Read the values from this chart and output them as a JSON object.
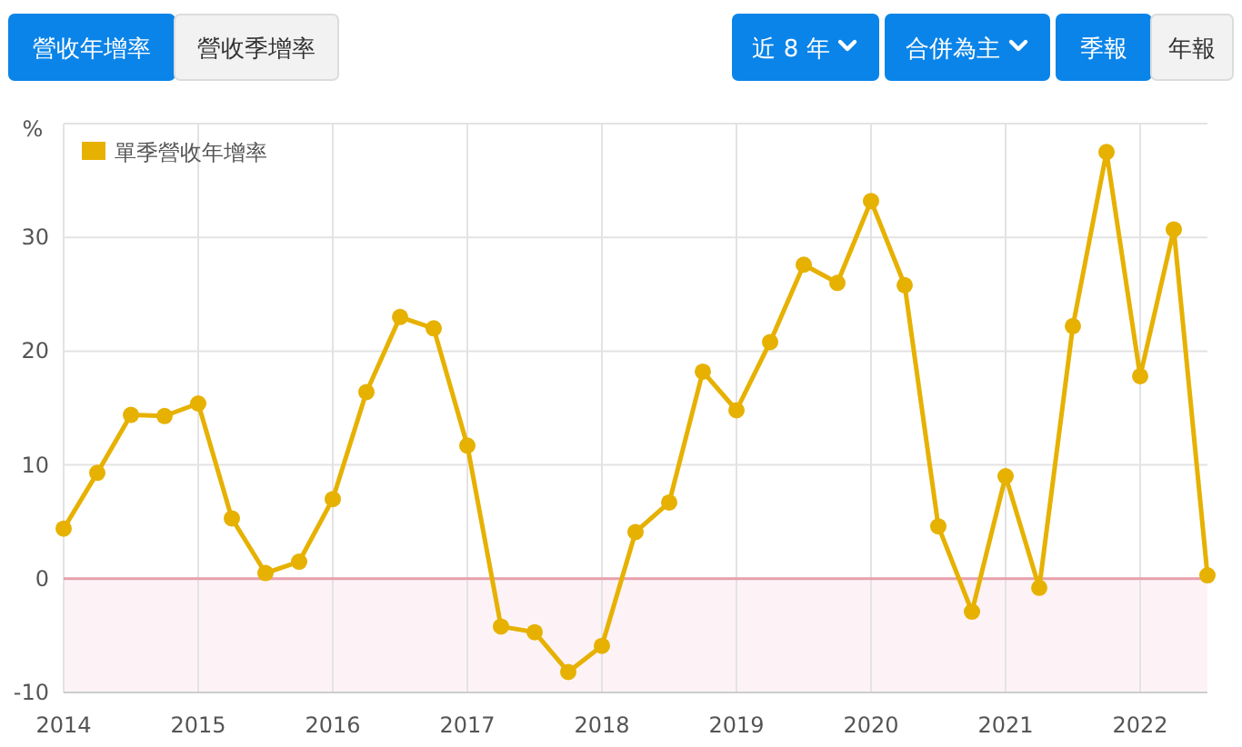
{
  "chart_data": {
    "type": "line",
    "ylabel": "%",
    "annotations": [
      "營收年增率",
      "營收季增率",
      "近 8 年",
      "合併為主",
      "季報",
      "年報"
    ],
    "x": [
      2014,
      2014.25,
      2014.5,
      2014.75,
      2015,
      2015.25,
      2015.5,
      2015.75,
      2016,
      2016.25,
      2016.5,
      2016.75,
      2017,
      2017.25,
      2017.5,
      2017.75,
      2018,
      2018.25,
      2018.5,
      2018.75,
      2019,
      2019.25,
      2019.5,
      2019.75,
      2020,
      2020.25,
      2020.5,
      2020.75,
      2021,
      2021.25,
      2021.5,
      2021.75,
      2022,
      2022.25,
      2022.5
    ],
    "series": [
      {
        "name": "單季營收年增率",
        "color": "#e6b100",
        "values": [
          4.4,
          9.3,
          14.4,
          14.3,
          15.4,
          5.3,
          0.5,
          1.5,
          7,
          16.4,
          23,
          22,
          11.7,
          -4.2,
          -4.7,
          -8.2,
          -5.9,
          4.1,
          6.7,
          18.2,
          14.8,
          20.8,
          27.6,
          26,
          33.2,
          25.8,
          4.6,
          -2.9,
          9,
          -0.8,
          22.2,
          37.5,
          17.8,
          30.7,
          0.3
        ]
      }
    ],
    "xlim": [
      2014,
      2022.5
    ],
    "xticks": [
      2014,
      2015,
      2016,
      2017,
      2018,
      2019,
      2020,
      2021,
      2022
    ],
    "ylim": [
      -10,
      40
    ],
    "yticks": [
      -10,
      0,
      10,
      20,
      30,
      {
        "value": 40,
        "label": null
      }
    ],
    "ref_lines": [
      {
        "axis": "y",
        "value": 0,
        "color": "#e8a0ac"
      }
    ],
    "bands": [
      {
        "axis": "y",
        "from": -10,
        "to": 0,
        "color": "#fdf3f6"
      }
    ],
    "grid": true,
    "legend": "top left",
    "marker": "circle",
    "line_style": "solid"
  }
}
